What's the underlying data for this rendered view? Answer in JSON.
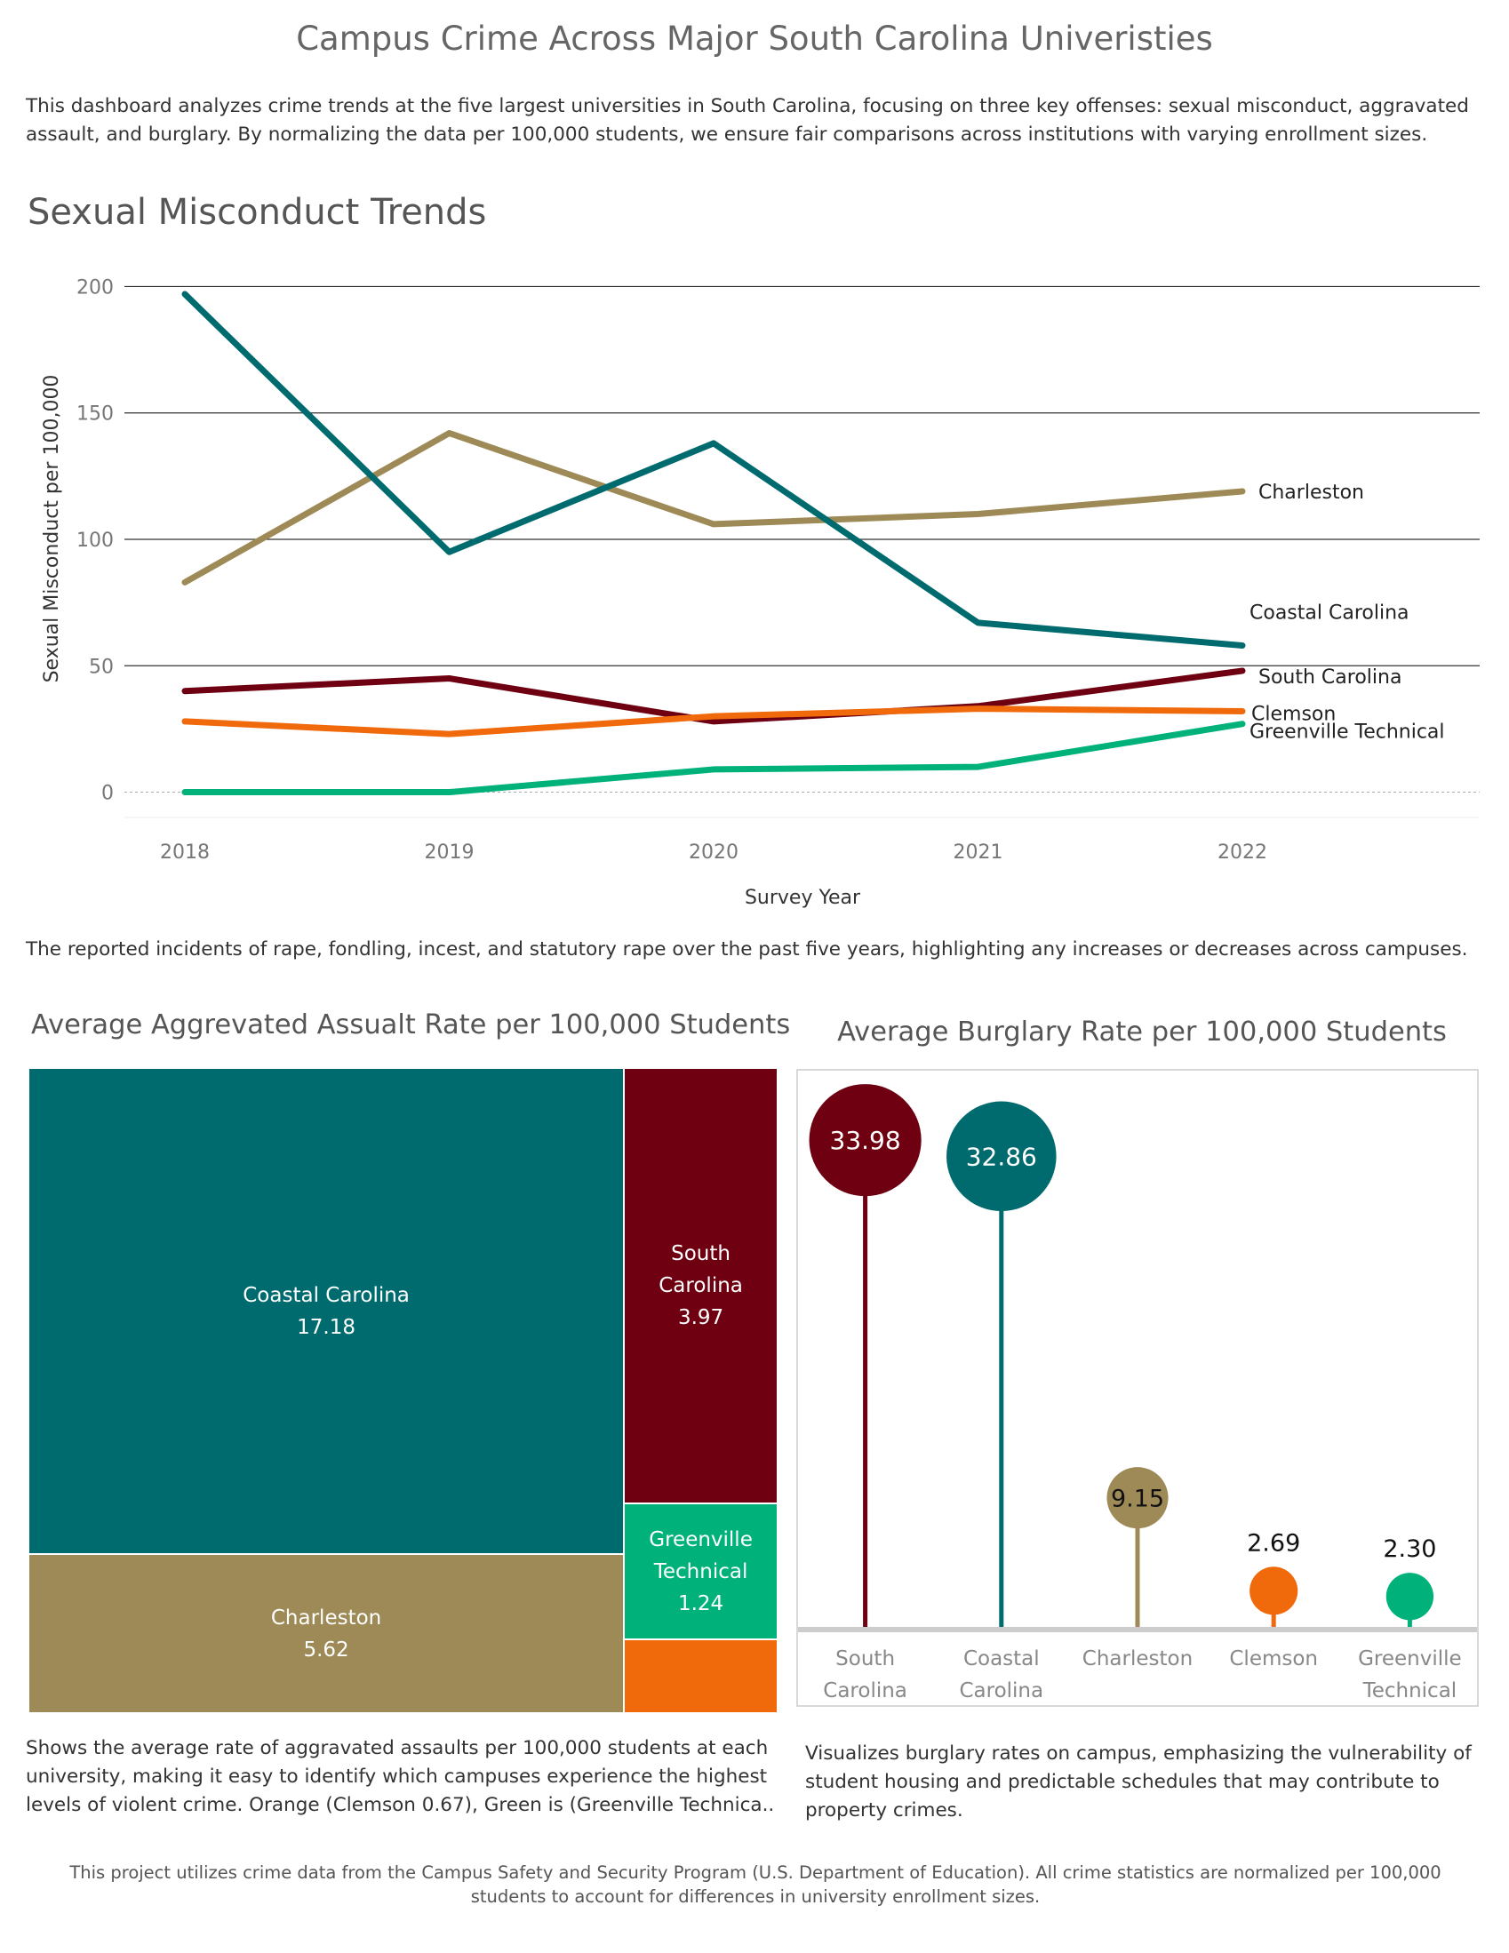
{
  "page": {
    "title": "Campus Crime Across Major South Carolina Univeristies",
    "intro": "This dashboard analyzes crime trends at the five largest universities in South Carolina, focusing on three key offenses: sexual misconduct, aggravated assault, and burglary. By normalizing the data per 100,000 students, we ensure fair comparisons across institutions with varying enrollment sizes.",
    "footer": "This project utilizes crime data from the Campus Safety and Security Program (U.S. Department of Education). All crime statistics are normalized per 100,000 students to account for differences in university enrollment sizes."
  },
  "colors": {
    "south_carolina": "#6e0011",
    "coastal_carolina": "#006b6f",
    "charleston": "#9e8a56",
    "clemson": "#f06a0c",
    "greenville_technical": "#00b27a"
  },
  "line_section": {
    "title": "Sexual Misconduct Trends",
    "caption": "The reported incidents of rape, fondling, incest, and statutory rape over the past five years, highlighting any increases or decreases across campuses."
  },
  "treemap_section": {
    "title": "Average Aggrevated Assualt Rate per 100,000 Students",
    "caption": "Shows the average rate of aggravated assaults per 100,000 students at each university, making it easy to identify which campuses experience the highest levels of violent crime. Orange (Clemson 0.67), Green is (Greenville Technica.."
  },
  "lollipop_section": {
    "title": "Average Burglary Rate per 100,000 Students",
    "caption": "Visualizes burglary rates on campus, emphasizing the vulnerability of student housing and predictable schedules that may contribute to property crimes."
  },
  "chart_data": [
    {
      "type": "line",
      "title": "Sexual Misconduct Trends",
      "xlabel": "Survey Year",
      "ylabel": "Sexual Misconduct per 100,000",
      "x": [
        2018,
        2019,
        2020,
        2021,
        2022
      ],
      "x_ticks": [
        "2018",
        "2019",
        "2020",
        "2021",
        "2022"
      ],
      "y_ticks": [
        "0",
        "50",
        "100",
        "150",
        "200"
      ],
      "ylim": [
        -10,
        210
      ],
      "grid": true,
      "series": [
        {
          "name": "Charleston",
          "color": "#9e8a56",
          "values": [
            83,
            142,
            106,
            110,
            119
          ]
        },
        {
          "name": "Coastal Carolina",
          "color": "#006b6f",
          "values": [
            197,
            95,
            138,
            67,
            58
          ]
        },
        {
          "name": "South Carolina",
          "color": "#6e0011",
          "values": [
            40,
            45,
            28,
            34,
            48
          ]
        },
        {
          "name": "Clemson",
          "color": "#f06a0c",
          "values": [
            28,
            23,
            30,
            33,
            32
          ]
        },
        {
          "name": "Greenville Technical",
          "color": "#00b27a",
          "values": [
            0,
            0,
            9,
            10,
            27
          ]
        }
      ]
    },
    {
      "type": "treemap",
      "title": "Average Aggrevated Assualt Rate per 100,000 Students",
      "items": [
        {
          "name": "Coastal Carolina",
          "value": 17.18,
          "label": "Coastal Carolina",
          "value_label": "17.18",
          "color": "#006b6f"
        },
        {
          "name": "Charleston",
          "value": 5.62,
          "label": "Charleston",
          "value_label": "5.62",
          "color": "#9e8a56"
        },
        {
          "name": "South Carolina",
          "value": 3.97,
          "label": "South\nCarolina",
          "value_label": "3.97",
          "color": "#6e0011"
        },
        {
          "name": "Greenville Technical",
          "value": 1.24,
          "label": "Greenville\nTechnical",
          "value_label": "1.24",
          "color": "#00b27a"
        },
        {
          "name": "Clemson",
          "value": 0.67,
          "label": "",
          "value_label": "",
          "color": "#f06a0c"
        }
      ]
    },
    {
      "type": "lollipop",
      "title": "Average Burglary Rate per 100,000 Students",
      "ylim": [
        0,
        38
      ],
      "categories": [
        "South\nCarolina",
        "Coastal\nCarolina",
        "Charleston",
        "Clemson",
        "Greenville\nTechnical"
      ],
      "values": [
        33.98,
        32.86,
        9.15,
        2.69,
        2.3
      ],
      "value_labels": [
        "33.98",
        "32.86",
        "9.15",
        "2.69",
        "2.30"
      ],
      "colors": [
        "#6e0011",
        "#006b6f",
        "#9e8a56",
        "#f06a0c",
        "#00b27a"
      ]
    }
  ]
}
